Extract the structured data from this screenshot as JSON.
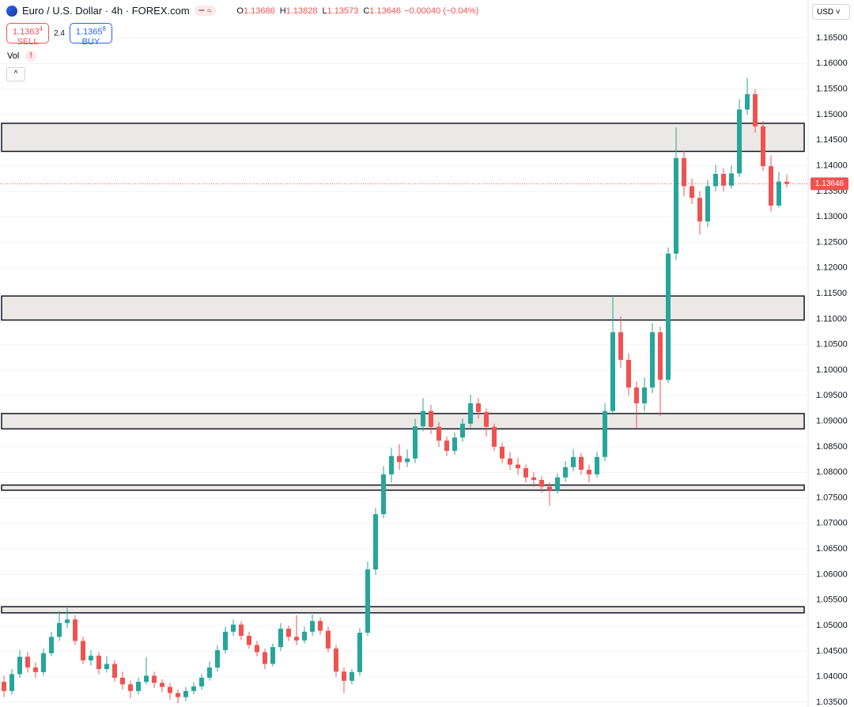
{
  "header": {
    "title": "Euro / U.S. Dollar · 4h · FOREX.com",
    "ohlc_keys": [
      "O",
      "H",
      "L",
      "C"
    ],
    "ohlc_values": [
      "1.13686",
      "1.13828",
      "1.13573",
      "1.13646"
    ],
    "change": "−0.00040 (−0.04%)",
    "sell_price": "1.1363",
    "sell_pip": "4",
    "sell_label": "SELL",
    "spread": "2.4",
    "buy_price": "1.1365",
    "buy_pip": "8",
    "buy_label": "BUY",
    "volume_label": "Vol",
    "currency": "USD"
  },
  "chart_data": {
    "type": "candlestick",
    "up_color": "#26a69a",
    "down_color": "#ef5350",
    "zone_color": "#ebe8e6",
    "ylim": [
      1.03407,
      1.17243
    ],
    "yticks": [
      {
        "value": 1.035,
        "label": "1.03500"
      },
      {
        "value": 1.04,
        "label": "1.04000"
      },
      {
        "value": 1.045,
        "label": "1.04500"
      },
      {
        "value": 1.05,
        "label": "1.05000"
      },
      {
        "value": 1.055,
        "label": "1.05500"
      },
      {
        "value": 1.06,
        "label": "1.06000"
      },
      {
        "value": 1.065,
        "label": "1.06500"
      },
      {
        "value": 1.07,
        "label": "1.07000"
      },
      {
        "value": 1.075,
        "label": "1.07500"
      },
      {
        "value": 1.08,
        "label": "1.08000"
      },
      {
        "value": 1.085,
        "label": "1.08500"
      },
      {
        "value": 1.09,
        "label": "1.09000"
      },
      {
        "value": 1.095,
        "label": "1.09500"
      },
      {
        "value": 1.1,
        "label": "1.10000"
      },
      {
        "value": 1.105,
        "label": "1.10500"
      },
      {
        "value": 1.11,
        "label": "1.11000"
      },
      {
        "value": 1.115,
        "label": "1.11500"
      },
      {
        "value": 1.12,
        "label": "1.12000"
      },
      {
        "value": 1.125,
        "label": "1.12500"
      },
      {
        "value": 1.13,
        "label": "1.13000"
      },
      {
        "value": 1.135,
        "label": "1.13500"
      },
      {
        "value": 1.14,
        "label": "1.14000"
      },
      {
        "value": 1.145,
        "label": "1.14500"
      },
      {
        "value": 1.15,
        "label": "1.15000"
      },
      {
        "value": 1.155,
        "label": "1.15500"
      },
      {
        "value": 1.16,
        "label": "1.16000"
      },
      {
        "value": 1.165,
        "label": "1.16500"
      }
    ],
    "grid": true,
    "last_price": 1.13646,
    "zones": [
      [
        1.1428,
        1.1483
      ],
      [
        1.1098,
        1.1145
      ],
      [
        1.0885,
        1.0915
      ],
      [
        1.0765,
        1.0775
      ],
      [
        1.0525,
        1.0537
      ]
    ],
    "open": [
      1.039,
      1.0372,
      1.0405,
      1.0439,
      1.0418,
      1.0409,
      1.0446,
      1.0478,
      1.0505,
      1.0512,
      1.047,
      1.0432,
      1.0441,
      1.0415,
      1.0425,
      1.0398,
      1.0385,
      1.0372,
      1.039,
      1.0402,
      1.0388,
      1.038,
      1.0368,
      1.036,
      1.0372,
      1.0381,
      1.0398,
      1.0418,
      1.0452,
      1.0488,
      1.0502,
      1.048,
      1.0462,
      1.0448,
      1.0425,
      1.0458,
      1.0494,
      1.0478,
      1.0471,
      1.0488,
      1.0509,
      1.049,
      1.0455,
      1.041,
      1.0392,
      1.0409,
      1.0486,
      1.061,
      1.0718,
      1.0796,
      1.0832,
      1.082,
      1.0827,
      1.089,
      1.092,
      1.0889,
      1.0862,
      1.0842,
      1.0868,
      1.0895,
      1.0935,
      1.0918,
      1.0889,
      1.085,
      1.0827,
      1.0815,
      1.0808,
      1.079,
      1.0785,
      1.0772,
      1.0765,
      1.079,
      1.081,
      1.083,
      1.0805,
      1.0796,
      1.083,
      1.092,
      1.1074,
      1.102,
      1.0966,
      1.0935,
      1.0966,
      1.1074,
      1.0981,
      1.1228,
      1.1415,
      1.136,
      1.1337,
      1.1291,
      1.136,
      1.1384,
      1.1361,
      1.1385,
      1.151,
      1.154,
      1.1477,
      1.1399,
      1.1322,
      1.13686
    ],
    "high": [
      1.0402,
      1.0415,
      1.0452,
      1.0448,
      1.0428,
      1.0455,
      1.0488,
      1.0528,
      1.0535,
      1.052,
      1.0478,
      1.0452,
      1.0448,
      1.044,
      1.0432,
      1.041,
      1.0392,
      1.0398,
      1.0438,
      1.041,
      1.0395,
      1.0388,
      1.0375,
      1.038,
      1.039,
      1.0405,
      1.043,
      1.0462,
      1.0498,
      1.0512,
      1.0508,
      1.0488,
      1.047,
      1.0455,
      1.0465,
      1.0505,
      1.05,
      1.052,
      1.0498,
      1.0522,
      1.0515,
      1.0498,
      1.0462,
      1.0418,
      1.0415,
      1.0495,
      1.0625,
      1.073,
      1.0812,
      1.0848,
      1.0855,
      1.0845,
      1.0905,
      1.0945,
      1.0932,
      1.0898,
      1.087,
      1.0878,
      1.0905,
      1.0952,
      1.0945,
      1.0925,
      1.0895,
      1.0858,
      1.084,
      1.0828,
      1.0815,
      1.08,
      1.0792,
      1.078,
      1.0798,
      1.0822,
      1.0845,
      1.0838,
      1.0815,
      1.084,
      1.0935,
      1.1145,
      1.1105,
      1.1032,
      1.0978,
      1.0985,
      1.1092,
      1.1085,
      1.124,
      1.1475,
      1.1428,
      1.1375,
      1.135,
      1.1372,
      1.1402,
      1.1395,
      1.14,
      1.153,
      1.1572,
      1.155,
      1.1488,
      1.142,
      1.1388,
      1.13828
    ],
    "low": [
      1.036,
      1.0365,
      1.0398,
      1.0408,
      1.0398,
      1.0402,
      1.044,
      1.047,
      1.0495,
      1.0462,
      1.0425,
      1.0422,
      1.0405,
      1.0408,
      1.039,
      1.0375,
      1.0358,
      1.0365,
      1.0385,
      1.0378,
      1.037,
      1.0355,
      1.0348,
      1.0352,
      1.0365,
      1.0375,
      1.0392,
      1.041,
      1.0445,
      1.048,
      1.0472,
      1.0455,
      1.044,
      1.0415,
      1.042,
      1.045,
      1.047,
      1.0462,
      1.0465,
      1.048,
      1.0482,
      1.0448,
      1.04,
      1.0368,
      1.0385,
      1.0402,
      1.048,
      1.06,
      1.071,
      1.078,
      1.0805,
      1.081,
      1.0818,
      1.088,
      1.0875,
      1.085,
      1.0832,
      1.0835,
      1.086,
      1.0888,
      1.0905,
      1.087,
      1.0842,
      1.0818,
      1.0805,
      1.0795,
      1.078,
      1.0772,
      1.076,
      1.0735,
      1.0758,
      1.0782,
      1.0802,
      1.0795,
      1.078,
      1.079,
      1.0822,
      1.0912,
      1.1005,
      1.095,
      1.0885,
      1.092,
      1.0955,
      1.091,
      1.0975,
      1.1215,
      1.134,
      1.1325,
      1.1265,
      1.128,
      1.135,
      1.135,
      1.1355,
      1.1378,
      1.15,
      1.1465,
      1.139,
      1.131,
      1.1318,
      1.13573
    ],
    "close": [
      1.0372,
      1.0405,
      1.0439,
      1.0418,
      1.0409,
      1.0446,
      1.0478,
      1.0505,
      1.0512,
      1.047,
      1.0432,
      1.0441,
      1.0415,
      1.0425,
      1.0398,
      1.0385,
      1.0372,
      1.039,
      1.0402,
      1.0388,
      1.038,
      1.0368,
      1.036,
      1.0372,
      1.0381,
      1.0398,
      1.0418,
      1.0452,
      1.0488,
      1.0502,
      1.048,
      1.0462,
      1.0448,
      1.0425,
      1.0458,
      1.0494,
      1.0478,
      1.0471,
      1.0488,
      1.0509,
      1.049,
      1.0455,
      1.041,
      1.0392,
      1.0409,
      1.0486,
      1.061,
      1.0718,
      1.0796,
      1.0832,
      1.082,
      1.0827,
      1.089,
      1.092,
      1.0889,
      1.0862,
      1.0842,
      1.0868,
      1.0895,
      1.0935,
      1.0918,
      1.0889,
      1.085,
      1.0827,
      1.0815,
      1.0808,
      1.079,
      1.0785,
      1.0772,
      1.0765,
      1.079,
      1.081,
      1.083,
      1.0805,
      1.0796,
      1.083,
      1.092,
      1.1074,
      1.102,
      1.0966,
      1.0935,
      1.0966,
      1.1074,
      1.0981,
      1.1228,
      1.1415,
      1.136,
      1.1337,
      1.1291,
      1.136,
      1.1384,
      1.1361,
      1.1385,
      1.151,
      1.154,
      1.1477,
      1.1399,
      1.1322,
      1.1369,
      1.13646
    ]
  }
}
